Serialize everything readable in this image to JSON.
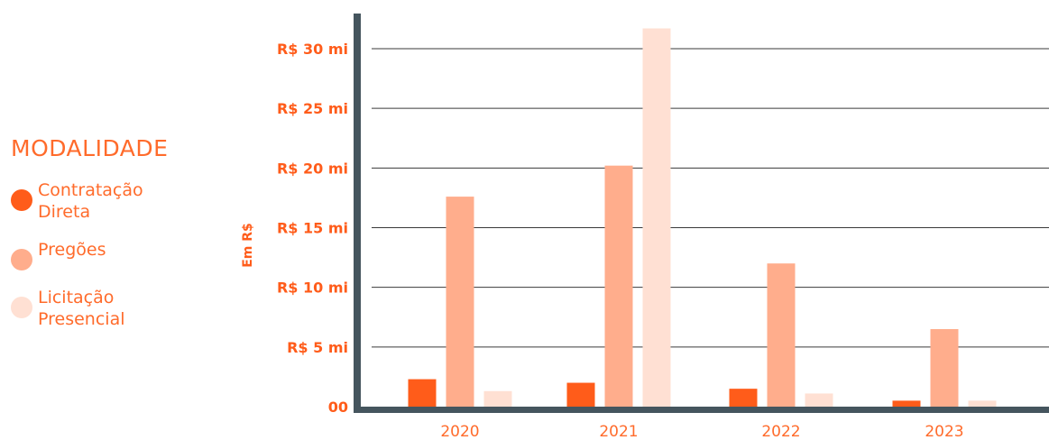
{
  "legend": {
    "title": "MODALIDADE",
    "items": [
      {
        "label": "Contratação Direta",
        "color": "#ff5c1a"
      },
      {
        "label": "Pregões",
        "color": "#ffad8c"
      },
      {
        "label": "Licitação Presencial",
        "color": "#ffe0d3"
      }
    ]
  },
  "chart_data": {
    "type": "bar",
    "categories": [
      "2020",
      "2021",
      "2022",
      "2023"
    ],
    "series": [
      {
        "name": "Contratação Direta",
        "color": "#ff5c1a",
        "values": [
          2.3,
          2.0,
          1.5,
          0.5
        ]
      },
      {
        "name": "Pregões",
        "color": "#ffad8c",
        "values": [
          17.6,
          20.2,
          12.0,
          6.5
        ]
      },
      {
        "name": "Licitação Presencial",
        "color": "#ffe0d3",
        "values": [
          1.3,
          31.7,
          1.1,
          0.5
        ]
      }
    ],
    "ylabel": "Em R$",
    "ylim": [
      0,
      32
    ],
    "yticks": [
      0,
      5,
      10,
      15,
      20,
      25,
      30
    ],
    "ytick_labels": [
      "00",
      "R$ 5 mi",
      "R$ 10 mi",
      "R$ 15 mi",
      "R$ 20 mi",
      "R$ 25 mi",
      "R$ 30 mi"
    ],
    "grid": true,
    "axis_color": "#45555e",
    "grid_color": "#3a3a3a"
  }
}
